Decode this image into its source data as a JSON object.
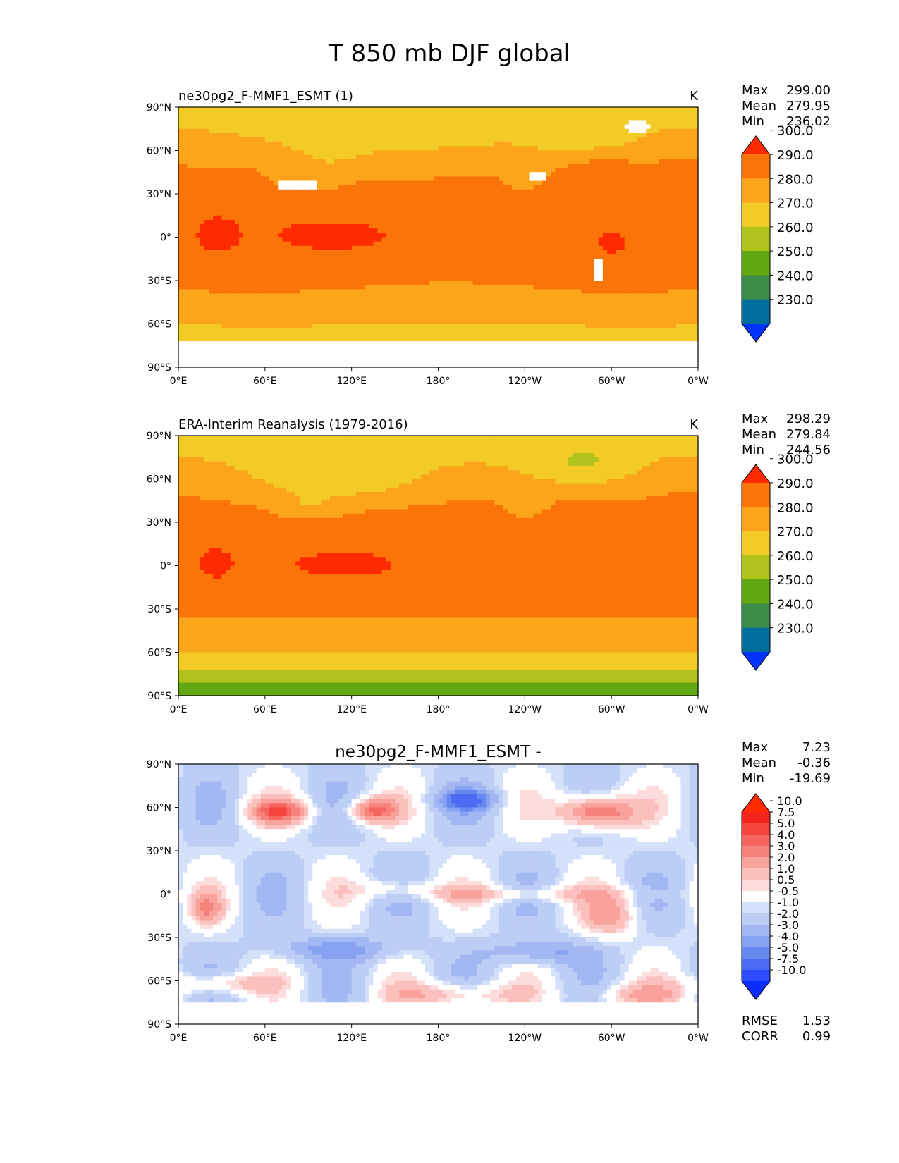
{
  "figure": {
    "title": "T 850 mb DJF global"
  },
  "chart_data": [
    {
      "type": "heatmap",
      "title_left": "ne30pg2_F-MMF1_ESMT (1)",
      "title_center": "",
      "units": "K",
      "stats": [
        {
          "label": "Max",
          "value": "299.00"
        },
        {
          "label": "Mean",
          "value": "279.95"
        },
        {
          "label": "Min",
          "value": "236.02"
        }
      ],
      "colorbar": {
        "ticks": [
          "230.0",
          "240.0",
          "250.0",
          "260.0",
          "270.0",
          "280.0",
          "290.0",
          "300.0"
        ],
        "colors": [
          "#0033ff",
          "#006e9a",
          "#3c8c4a",
          "#62a812",
          "#b0c21c",
          "#f2cb26",
          "#fca41a",
          "#fa7408",
          "#ff2a00"
        ],
        "extend": "both"
      },
      "field": "model",
      "xlabel": "",
      "ylabel": "",
      "x_ticks": [
        "0°E",
        "60°E",
        "120°E",
        "180°",
        "120°W",
        "60°W",
        "0°W"
      ],
      "y_ticks": [
        "90°N",
        "60°N",
        "30°N",
        "0°",
        "30°S",
        "60°S",
        "90°S"
      ]
    },
    {
      "type": "heatmap",
      "title_left": "ERA-Interim Reanalysis (1979-2016)",
      "title_center": "",
      "units": "K",
      "stats": [
        {
          "label": "Max",
          "value": "298.29"
        },
        {
          "label": "Mean",
          "value": "279.84"
        },
        {
          "label": "Min",
          "value": "244.56"
        }
      ],
      "colorbar": {
        "ticks": [
          "230.0",
          "240.0",
          "250.0",
          "260.0",
          "270.0",
          "280.0",
          "290.0",
          "300.0"
        ],
        "colors": [
          "#0033ff",
          "#006e9a",
          "#3c8c4a",
          "#62a812",
          "#b0c21c",
          "#f2cb26",
          "#fca41a",
          "#fa7408",
          "#ff2a00"
        ],
        "extend": "both"
      },
      "field": "obs",
      "xlabel": "",
      "ylabel": "",
      "x_ticks": [
        "0°E",
        "60°E",
        "120°E",
        "180°",
        "120°W",
        "60°W",
        "0°W"
      ],
      "y_ticks": [
        "90°N",
        "60°N",
        "30°N",
        "0°",
        "30°S",
        "60°S",
        "90°S"
      ]
    },
    {
      "type": "heatmap",
      "title_left": "",
      "title_center": "ne30pg2_F-MMF1_ESMT -",
      "units": "",
      "stats": [
        {
          "label": "Max",
          "value": "7.23"
        },
        {
          "label": "Mean",
          "value": "-0.36"
        },
        {
          "label": "Min",
          "value": "-19.69"
        }
      ],
      "colorbar": {
        "ticks": [
          "-10.0",
          "-7.5",
          "-5.0",
          "-4.0",
          "-3.0",
          "-2.0",
          "-1.0",
          "-0.5",
          "0.5",
          "1.0",
          "2.0",
          "3.0",
          "4.0",
          "5.0",
          "7.5",
          "10.0"
        ],
        "colors": [
          "#0a2dff",
          "#2b4dfb",
          "#4a6bf2",
          "#6788ee",
          "#86a2f0",
          "#a3b8f2",
          "#bccdf6",
          "#d5e0fa",
          "#ffffff",
          "#fcdcdc",
          "#fbc0bc",
          "#f9a29c",
          "#f7827c",
          "#f5645d",
          "#f4443d",
          "#f2241c",
          "#ff2a00"
        ],
        "extend": "both"
      },
      "field": "diff",
      "xlabel": "",
      "ylabel": "",
      "x_ticks": [
        "0°E",
        "60°E",
        "120°E",
        "180°",
        "120°W",
        "60°W",
        "0°W"
      ],
      "y_ticks": [
        "90°N",
        "60°N",
        "30°N",
        "0°",
        "30°S",
        "60°S",
        "90°S"
      ],
      "metrics": [
        {
          "label": "RMSE",
          "value": "1.53"
        },
        {
          "label": "CORR",
          "value": "0.99"
        }
      ]
    }
  ]
}
